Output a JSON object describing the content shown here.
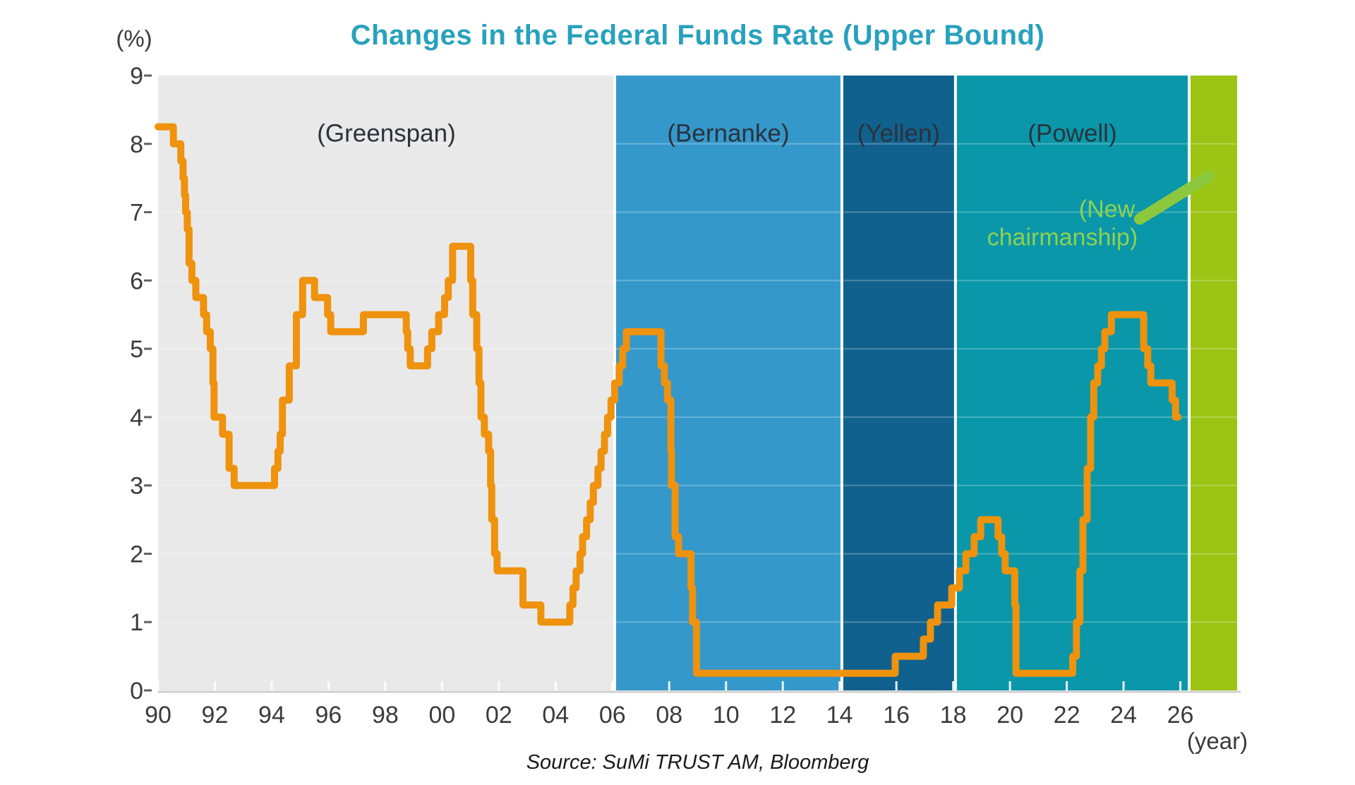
{
  "page": {
    "background": "#FFFFFF"
  },
  "header": {
    "title": "Changes in the Federal Funds Rate (Upper Bound)"
  },
  "chart_data": {
    "type": "line",
    "subtype": "step-after",
    "title": "Changes in the Federal Funds Rate (Upper Bound)",
    "title_color": "#28A1BD",
    "ylabel": "(%)",
    "xlabel": "(year)",
    "source": "Source: SuMi TRUST AM, Bloomberg",
    "x_domain": [
      1990,
      2028
    ],
    "y_domain": [
      0,
      9
    ],
    "grid": "horizontal white lines at each integer, legend none",
    "axis_color": "#3B3B3B",
    "x_ticks": [
      {
        "year": 1990,
        "label": "90"
      },
      {
        "year": 1992,
        "label": "92"
      },
      {
        "year": 1994,
        "label": "94"
      },
      {
        "year": 1996,
        "label": "96"
      },
      {
        "year": 1998,
        "label": "98"
      },
      {
        "year": 2000,
        "label": "00"
      },
      {
        "year": 2002,
        "label": "02"
      },
      {
        "year": 2004,
        "label": "04"
      },
      {
        "year": 2006,
        "label": "06"
      },
      {
        "year": 2008,
        "label": "08"
      },
      {
        "year": 2010,
        "label": "10"
      },
      {
        "year": 2012,
        "label": "12"
      },
      {
        "year": 2014,
        "label": "14"
      },
      {
        "year": 2016,
        "label": "16"
      },
      {
        "year": 2018,
        "label": "18"
      },
      {
        "year": 2020,
        "label": "20"
      },
      {
        "year": 2022,
        "label": "22"
      },
      {
        "year": 2024,
        "label": "24"
      },
      {
        "year": 2026,
        "label": "26"
      }
    ],
    "y_ticks": [
      0,
      1,
      2,
      3,
      4,
      5,
      6,
      7,
      8,
      9
    ],
    "regions": [
      {
        "label": "(Greenspan)",
        "start": 1990,
        "end": 2006.08,
        "color": "#E9E9E9"
      },
      {
        "label": "(Bernanke)",
        "start": 2006.08,
        "end": 2014.08,
        "color": "#3598CB"
      },
      {
        "label": "(Yellen)",
        "start": 2014.08,
        "end": 2018.08,
        "color": "#10618E"
      },
      {
        "label": "(Powell)",
        "start": 2018.08,
        "end": 2026.31,
        "color": "#0997A9"
      },
      {
        "label": "",
        "start": 2026.31,
        "end": 2028,
        "color": "#9BC414"
      }
    ],
    "region_label_color": "#2A323C",
    "region_label_y": 8.16,
    "line": {
      "name": "Federal funds rate (upper bound)",
      "color": "#EF920D",
      "width": 10,
      "end_x": 2025.92
    },
    "series": [
      [
        1990.0,
        8.25
      ],
      [
        1990.54,
        8.0
      ],
      [
        1990.8,
        7.75
      ],
      [
        1990.88,
        7.5
      ],
      [
        1990.93,
        7.25
      ],
      [
        1990.97,
        7.0
      ],
      [
        1991.03,
        6.75
      ],
      [
        1991.09,
        6.25
      ],
      [
        1991.19,
        6.0
      ],
      [
        1991.33,
        5.75
      ],
      [
        1991.6,
        5.5
      ],
      [
        1991.71,
        5.25
      ],
      [
        1991.84,
        5.0
      ],
      [
        1991.93,
        4.5
      ],
      [
        1991.97,
        4.0
      ],
      [
        1992.27,
        3.75
      ],
      [
        1992.5,
        3.25
      ],
      [
        1992.68,
        3.0
      ],
      [
        1994.1,
        3.25
      ],
      [
        1994.22,
        3.5
      ],
      [
        1994.3,
        3.75
      ],
      [
        1994.38,
        4.25
      ],
      [
        1994.62,
        4.75
      ],
      [
        1994.87,
        5.5
      ],
      [
        1995.09,
        6.0
      ],
      [
        1995.51,
        5.75
      ],
      [
        1995.97,
        5.5
      ],
      [
        1996.08,
        5.25
      ],
      [
        1997.23,
        5.5
      ],
      [
        1998.74,
        5.25
      ],
      [
        1998.79,
        5.0
      ],
      [
        1998.88,
        4.75
      ],
      [
        1999.49,
        5.0
      ],
      [
        1999.64,
        5.25
      ],
      [
        1999.88,
        5.5
      ],
      [
        2000.09,
        5.75
      ],
      [
        2000.22,
        6.0
      ],
      [
        2000.37,
        6.5
      ],
      [
        2001.01,
        6.0
      ],
      [
        2001.08,
        5.5
      ],
      [
        2001.22,
        5.0
      ],
      [
        2001.3,
        4.5
      ],
      [
        2001.37,
        4.0
      ],
      [
        2001.49,
        3.75
      ],
      [
        2001.64,
        3.5
      ],
      [
        2001.71,
        3.0
      ],
      [
        2001.75,
        2.5
      ],
      [
        2001.85,
        2.0
      ],
      [
        2001.94,
        1.75
      ],
      [
        2002.85,
        1.25
      ],
      [
        2003.48,
        1.0
      ],
      [
        2004.5,
        1.25
      ],
      [
        2004.61,
        1.5
      ],
      [
        2004.72,
        1.75
      ],
      [
        2004.86,
        2.0
      ],
      [
        2004.95,
        2.25
      ],
      [
        2005.09,
        2.5
      ],
      [
        2005.22,
        2.75
      ],
      [
        2005.33,
        3.0
      ],
      [
        2005.49,
        3.25
      ],
      [
        2005.6,
        3.5
      ],
      [
        2005.72,
        3.75
      ],
      [
        2005.83,
        4.0
      ],
      [
        2005.95,
        4.25
      ],
      [
        2006.08,
        4.5
      ],
      [
        2006.24,
        4.75
      ],
      [
        2006.36,
        5.0
      ],
      [
        2006.49,
        5.25
      ],
      [
        2007.71,
        4.75
      ],
      [
        2007.83,
        4.5
      ],
      [
        2007.94,
        4.25
      ],
      [
        2008.06,
        3.5
      ],
      [
        2008.08,
        3.0
      ],
      [
        2008.21,
        2.25
      ],
      [
        2008.33,
        2.0
      ],
      [
        2008.77,
        1.5
      ],
      [
        2008.82,
        1.0
      ],
      [
        2008.96,
        0.25
      ],
      [
        2015.96,
        0.5
      ],
      [
        2016.95,
        0.75
      ],
      [
        2017.2,
        1.0
      ],
      [
        2017.45,
        1.25
      ],
      [
        2017.95,
        1.5
      ],
      [
        2018.22,
        1.75
      ],
      [
        2018.45,
        2.0
      ],
      [
        2018.74,
        2.25
      ],
      [
        2018.97,
        2.5
      ],
      [
        2019.58,
        2.25
      ],
      [
        2019.71,
        2.0
      ],
      [
        2019.83,
        1.75
      ],
      [
        2020.17,
        1.25
      ],
      [
        2020.21,
        0.25
      ],
      [
        2022.21,
        0.5
      ],
      [
        2022.34,
        1.0
      ],
      [
        2022.46,
        1.75
      ],
      [
        2022.57,
        2.5
      ],
      [
        2022.72,
        3.25
      ],
      [
        2022.84,
        4.0
      ],
      [
        2022.95,
        4.5
      ],
      [
        2023.09,
        4.75
      ],
      [
        2023.22,
        5.0
      ],
      [
        2023.34,
        5.25
      ],
      [
        2023.57,
        5.5
      ],
      [
        2024.71,
        5.0
      ],
      [
        2024.85,
        4.75
      ],
      [
        2024.96,
        4.5
      ],
      [
        2025.71,
        4.25
      ],
      [
        2025.83,
        4.0
      ]
    ],
    "annotation": {
      "lines": [
        "(New",
        "chairmanship)"
      ],
      "color": "#8FD14F",
      "anchors": [
        [
          2024.4,
          7.05
        ],
        [
          2024.5,
          6.64
        ]
      ],
      "arrow": {
        "x1": 2024.57,
        "y1": 6.9,
        "x2": 2026.98,
        "y2": 7.52,
        "color": "#8CC83E",
        "width": 16
      }
    }
  }
}
